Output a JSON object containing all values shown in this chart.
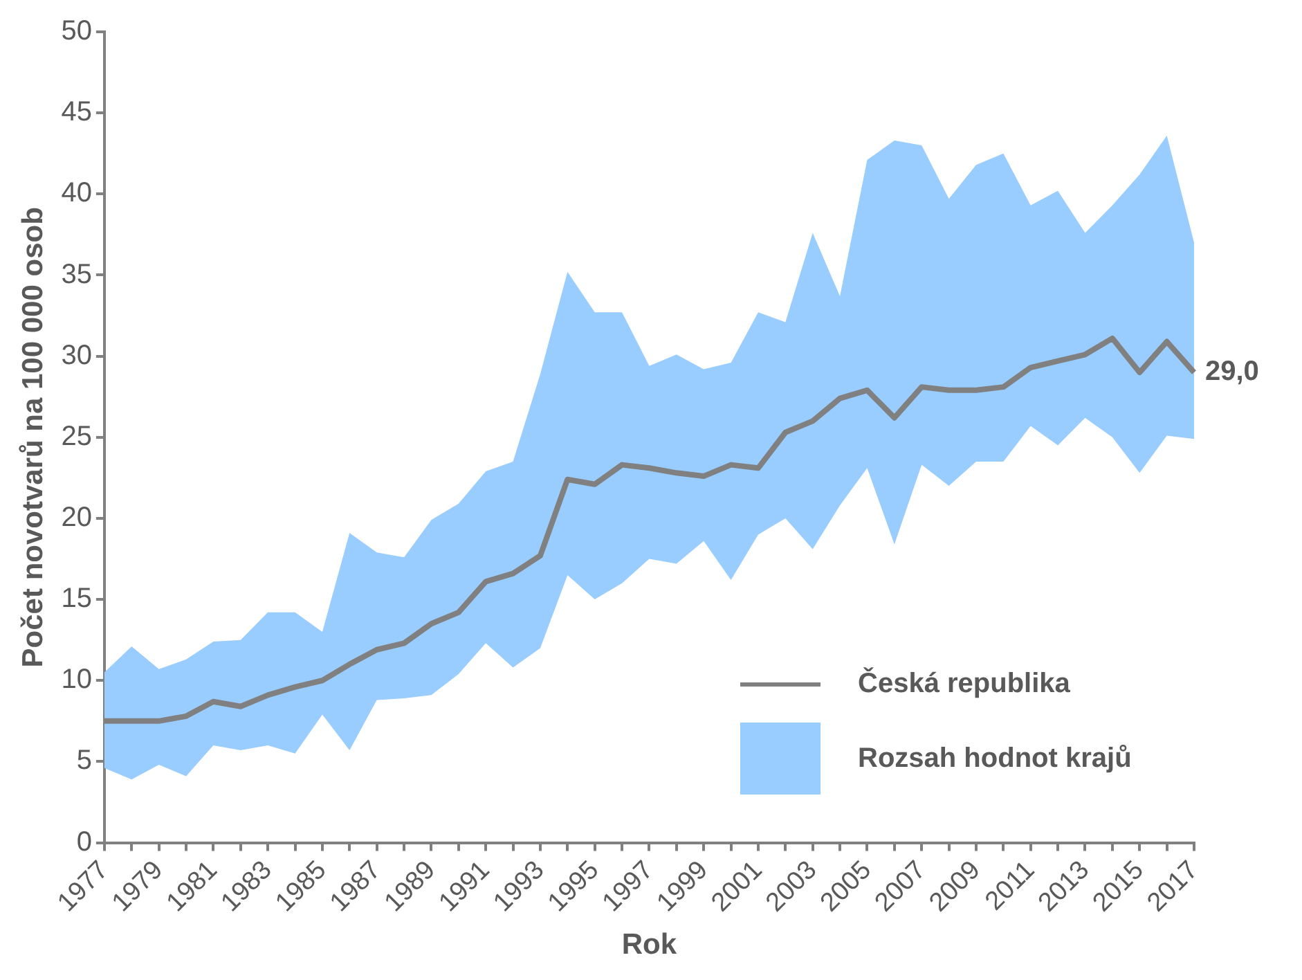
{
  "chart_data": {
    "type": "line",
    "xlabel": "Rok",
    "ylabel": "Počet novotvarů na 100 000 osob",
    "categories": [
      "1977",
      null,
      "1979",
      null,
      "1981",
      null,
      "1983",
      null,
      "1985",
      null,
      "1987",
      null,
      "1989",
      null,
      "1991",
      null,
      "1993",
      null,
      "1995",
      null,
      "1997",
      null,
      "1999",
      null,
      "2001",
      null,
      "2003",
      null,
      "2005",
      null,
      "2007",
      null,
      "2009",
      null,
      "2011",
      null,
      "2013",
      null,
      "2015",
      null,
      "2017"
    ],
    "series": [
      {
        "name": "Česká republika",
        "color": "#808080",
        "values": [
          7.5,
          7.5,
          7.5,
          7.8,
          8.7,
          8.4,
          9.1,
          9.6,
          10.0,
          11.0,
          11.9,
          12.3,
          13.5,
          14.2,
          16.1,
          16.6,
          17.7,
          22.4,
          22.1,
          23.3,
          23.1,
          22.8,
          22.6,
          23.3,
          23.1,
          25.3,
          26.0,
          27.4,
          27.9,
          26.2,
          28.1,
          27.9,
          27.9,
          28.1,
          29.3,
          29.7,
          30.1,
          31.1,
          29.0,
          30.9,
          29.0
        ],
        "lower": [
          4.6,
          3.9,
          4.8,
          4.1,
          6.0,
          5.7,
          6.0,
          5.5,
          7.9,
          5.7,
          8.8,
          8.9,
          9.1,
          10.4,
          12.3,
          10.8,
          12.0,
          16.5,
          15.0,
          16.0,
          17.5,
          17.2,
          18.6,
          16.2,
          19.0,
          20.0,
          18.1,
          20.8,
          23.1,
          18.4,
          23.3,
          22.0,
          23.5,
          23.5,
          25.7,
          24.5,
          26.2,
          25.0,
          22.8,
          25.1,
          24.9
        ],
        "upper": [
          10.5,
          12.1,
          10.7,
          11.3,
          12.4,
          12.5,
          14.2,
          14.2,
          13.0,
          19.1,
          17.9,
          17.6,
          19.9,
          20.9,
          22.9,
          23.5,
          28.9,
          35.2,
          32.7,
          32.7,
          29.4,
          30.1,
          29.2,
          29.6,
          32.7,
          32.1,
          37.6,
          33.7,
          42.1,
          43.3,
          43.0,
          39.7,
          41.8,
          42.5,
          39.3,
          40.2,
          37.6,
          39.3,
          41.2,
          43.6,
          37.0
        ],
        "value_labels": [
          null,
          null,
          null,
          null,
          null,
          null,
          null,
          null,
          null,
          null,
          null,
          null,
          null,
          null,
          null,
          null,
          null,
          null,
          null,
          null,
          null,
          null,
          null,
          null,
          null,
          null,
          null,
          null,
          null,
          null,
          null,
          null,
          null,
          null,
          null,
          null,
          null,
          null,
          null,
          null,
          "29,0"
        ]
      }
    ],
    "color": "#99ccff",
    "annotations": [
      "Rozsah hodnot krajů"
    ],
    "ylim": [
      0,
      50
    ],
    "yticks": [
      0,
      5,
      10,
      15,
      20,
      25,
      30,
      35,
      40,
      45,
      50
    ],
    "grid": false,
    "legend": "bottom right",
    "marker": "none",
    "line_style": "solid"
  }
}
